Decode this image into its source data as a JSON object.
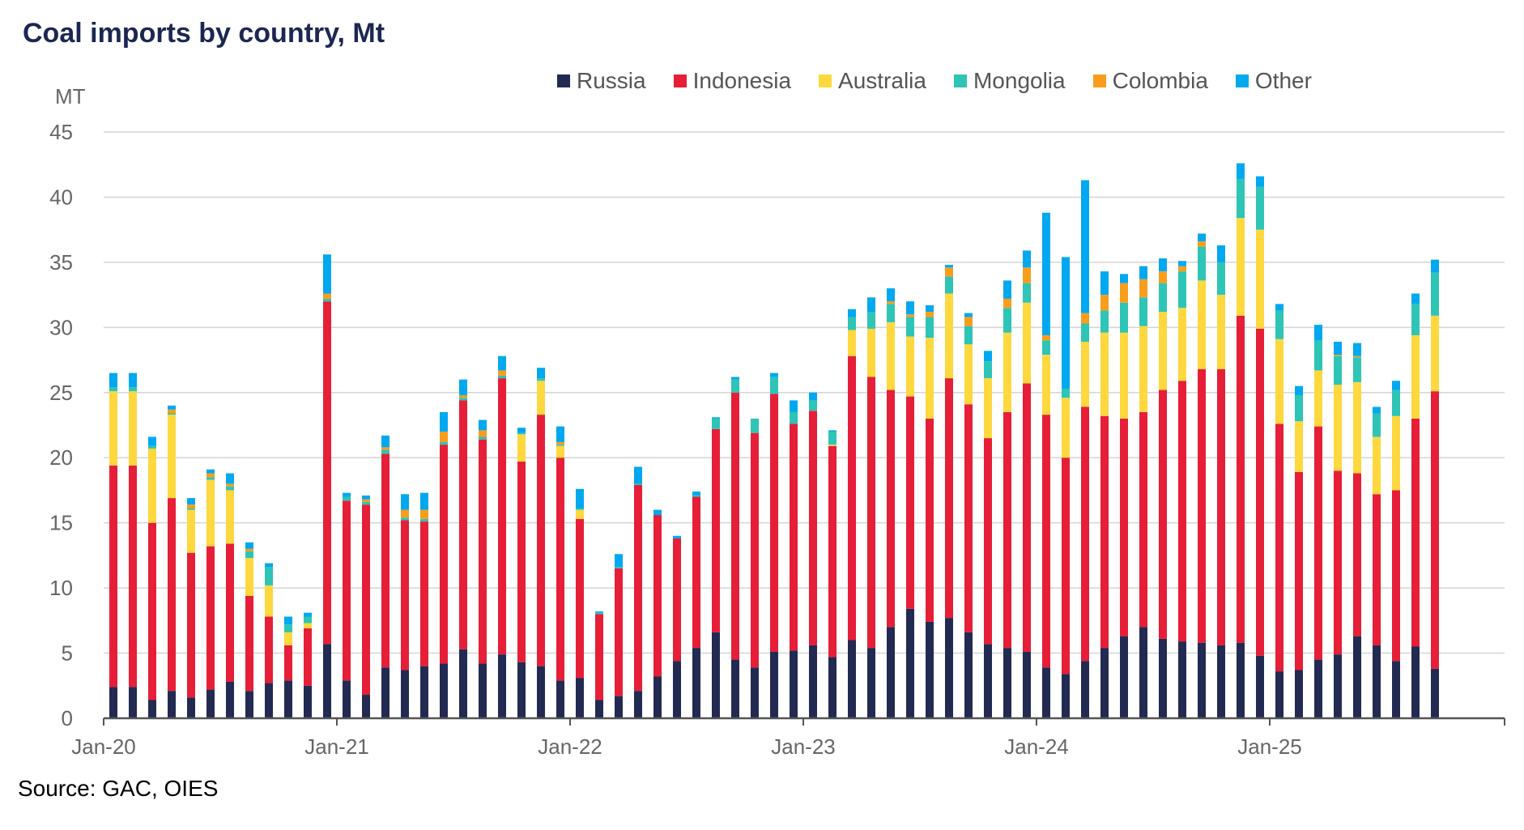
{
  "chart_data": {
    "type": "bar",
    "stacked": true,
    "title": "Coal imports by country, Mt",
    "ylabel": "MT",
    "xlabel": "",
    "source": "Source: GAC, OIES",
    "ylim": [
      0,
      45
    ],
    "yticks": [
      0,
      5,
      10,
      15,
      20,
      25,
      30,
      35,
      40,
      45
    ],
    "xtick_labels": [
      "Jan-20",
      "Jan-21",
      "Jan-22",
      "Jan-23",
      "Jan-24",
      "Jan-25"
    ],
    "grid": true,
    "legend_position": "top",
    "categories": [
      "Jan-20",
      "Feb-20",
      "Mar-20",
      "Apr-20",
      "May-20",
      "Jun-20",
      "Jul-20",
      "Aug-20",
      "Sep-20",
      "Oct-20",
      "Nov-20",
      "Dec-20",
      "Jan-21",
      "Feb-21",
      "Mar-21",
      "Apr-21",
      "May-21",
      "Jun-21",
      "Jul-21",
      "Aug-21",
      "Sep-21",
      "Oct-21",
      "Nov-21",
      "Dec-21",
      "Jan-22",
      "Feb-22",
      "Mar-22",
      "Apr-22",
      "May-22",
      "Jun-22",
      "Jul-22",
      "Aug-22",
      "Sep-22",
      "Oct-22",
      "Nov-22",
      "Dec-22",
      "Jan-23",
      "Feb-23",
      "Mar-23",
      "Apr-23",
      "May-23",
      "Jun-23",
      "Jul-23",
      "Aug-23",
      "Sep-23",
      "Oct-23",
      "Nov-23",
      "Dec-23",
      "Jan-24",
      "Feb-24",
      "Mar-24",
      "Apr-24",
      "May-24",
      "Jun-24",
      "Jul-24",
      "Aug-24",
      "Sep-24",
      "Oct-24",
      "Nov-24",
      "Dec-24",
      "Jan-25",
      "Feb-25",
      "Mar-25",
      "Apr-25",
      "May-25",
      "Jun-25",
      "Jul-25",
      "Aug-25",
      "Sep-25"
    ],
    "series": [
      {
        "name": "Russia",
        "color": "#222a52",
        "values": [
          2.4,
          2.4,
          1.4,
          2.1,
          1.6,
          2.2,
          2.8,
          2.1,
          2.7,
          2.9,
          2.5,
          5.7,
          2.9,
          1.8,
          3.9,
          3.7,
          4.0,
          4.2,
          5.3,
          4.2,
          4.9,
          4.3,
          4.0,
          2.9,
          3.1,
          1.4,
          1.7,
          2.1,
          3.2,
          4.4,
          5.4,
          6.6,
          4.5,
          3.9,
          5.1,
          5.2,
          5.6,
          4.7,
          6.0,
          5.4,
          7.0,
          8.4,
          7.4,
          7.7,
          6.6,
          5.7,
          5.4,
          5.1,
          3.9,
          3.4,
          4.4,
          5.4,
          6.3,
          7.0,
          6.1,
          5.9,
          5.8,
          5.6,
          5.8,
          4.8,
          3.6,
          3.7,
          4.5,
          4.9,
          6.3,
          5.6,
          4.4,
          5.5,
          3.8
        ]
      },
      {
        "name": "Indonesia",
        "color": "#e61e38",
        "values": [
          17.0,
          17.0,
          13.6,
          14.8,
          11.1,
          11.0,
          10.6,
          7.3,
          5.1,
          2.7,
          4.4,
          26.3,
          13.8,
          14.6,
          16.4,
          11.5,
          11.1,
          16.8,
          19.1,
          17.2,
          21.2,
          15.4,
          19.3,
          17.1,
          12.2,
          6.6,
          9.8,
          15.8,
          12.4,
          9.4,
          11.6,
          15.6,
          20.5,
          18.0,
          19.8,
          17.4,
          18.0,
          16.2,
          21.8,
          20.8,
          18.2,
          16.3,
          15.6,
          18.4,
          17.5,
          15.8,
          18.1,
          20.6,
          19.4,
          16.6,
          19.5,
          17.8,
          16.7,
          16.5,
          19.1,
          20.0,
          21.0,
          21.2,
          25.1,
          25.1,
          19.0,
          15.2,
          17.9,
          14.1,
          12.5,
          11.6,
          13.1,
          17.5,
          21.3
        ]
      },
      {
        "name": "Australia",
        "color": "#fed83e",
        "values": [
          5.7,
          5.7,
          5.7,
          6.4,
          3.3,
          5.1,
          4.1,
          2.9,
          2.4,
          1.0,
          0.4,
          0,
          0,
          0,
          0,
          0,
          0,
          0,
          0,
          0,
          0,
          2.1,
          2.6,
          0.9,
          0.7,
          0,
          0,
          0,
          0,
          0,
          0,
          0,
          0,
          0,
          0,
          0,
          0,
          0.1,
          2.0,
          3.7,
          5.2,
          4.6,
          6.2,
          6.5,
          4.6,
          4.6,
          6.1,
          6.2,
          4.6,
          4.6,
          5.0,
          6.4,
          6.6,
          6.6,
          6.0,
          5.6,
          6.8,
          5.7,
          7.5,
          7.6,
          6.5,
          3.9,
          4.3,
          6.6,
          7.0,
          4.4,
          5.7,
          6.4,
          5.8
        ]
      },
      {
        "name": "Mongolia",
        "color": "#2ec4b6",
        "values": [
          0.3,
          0.3,
          0.2,
          0.1,
          0.1,
          0.2,
          0.3,
          0.5,
          1.4,
          0.6,
          0.5,
          0.2,
          0.3,
          0.2,
          0.3,
          0.2,
          0.2,
          0.2,
          0.2,
          0.2,
          0.2,
          0.1,
          0.2,
          0.1,
          0.1,
          0.1,
          0.1,
          0.1,
          0,
          0,
          0.1,
          0.8,
          1.0,
          1.1,
          1.3,
          0.9,
          0.8,
          1.0,
          1.0,
          1.3,
          1.4,
          1.5,
          1.6,
          1.3,
          1.4,
          1.3,
          1.9,
          1.5,
          1.1,
          0.7,
          1.4,
          1.7,
          2.3,
          2.2,
          2.2,
          2.8,
          2.6,
          2.5,
          3.0,
          3.3,
          2.2,
          2.0,
          2.3,
          2.2,
          1.9,
          1.8,
          2.0,
          2.4,
          3.3
        ]
      },
      {
        "name": "Colombia",
        "color": "#f99d1c",
        "values": [
          0,
          0,
          0,
          0.3,
          0.3,
          0.3,
          0.2,
          0.2,
          0,
          0,
          0,
          0.4,
          0,
          0.2,
          0.2,
          0.6,
          0.7,
          0.8,
          0.2,
          0.5,
          0.4,
          0,
          0,
          0.2,
          0,
          0,
          0,
          0,
          0,
          0,
          0,
          0,
          0,
          0,
          0,
          0,
          0,
          0,
          0,
          0,
          0.2,
          0.2,
          0.4,
          0.7,
          0.7,
          0,
          0.7,
          1.2,
          0.4,
          0,
          0.8,
          1.2,
          1.5,
          1.4,
          0.9,
          0.4,
          0.4,
          0,
          0,
          0,
          0,
          0,
          0,
          0.1,
          0.1,
          0,
          0,
          0,
          0
        ]
      },
      {
        "name": "Other",
        "color": "#00a8f0",
        "values": [
          1.1,
          1.1,
          0.7,
          0.3,
          0.5,
          0.3,
          0.8,
          0.5,
          0.3,
          0.6,
          0.3,
          3.0,
          0.3,
          0.3,
          0.9,
          1.2,
          1.3,
          1.5,
          1.2,
          0.8,
          1.1,
          0.4,
          0.8,
          1.2,
          1.5,
          0.1,
          1.0,
          1.3,
          0.4,
          0.2,
          0.3,
          0.1,
          0.2,
          0,
          0.3,
          0.9,
          0.6,
          0.1,
          0.6,
          1.1,
          1.0,
          1.0,
          0.5,
          0.2,
          0.3,
          0.8,
          1.4,
          1.3,
          9.4,
          10.1,
          10.2,
          1.8,
          0.7,
          1.0,
          1.0,
          0.4,
          0.6,
          1.3,
          1.2,
          0.8,
          0.5,
          0.7,
          1.2,
          1.0,
          1.0,
          0.5,
          0.7,
          0.8,
          1.0
        ]
      }
    ]
  }
}
